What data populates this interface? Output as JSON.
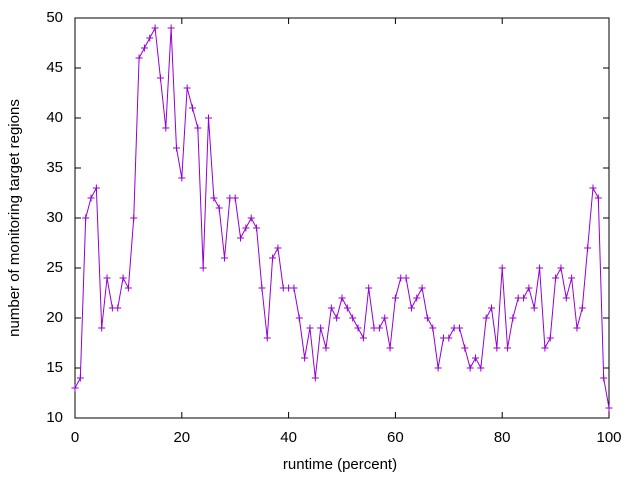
{
  "chart_data": {
    "type": "line",
    "x_label": "runtime (percent)",
    "y_label": "number of monitoring target regions",
    "x": [
      0,
      1,
      2,
      3,
      4,
      5,
      6,
      7,
      8,
      9,
      10,
      11,
      12,
      13,
      14,
      15,
      16,
      17,
      18,
      19,
      20,
      21,
      22,
      23,
      24,
      25,
      26,
      27,
      28,
      29,
      30,
      31,
      32,
      33,
      34,
      35,
      36,
      37,
      38,
      39,
      40,
      41,
      42,
      43,
      44,
      45,
      46,
      47,
      48,
      49,
      50,
      51,
      52,
      53,
      54,
      55,
      56,
      57,
      58,
      59,
      60,
      61,
      62,
      63,
      64,
      65,
      66,
      67,
      68,
      69,
      70,
      71,
      72,
      73,
      74,
      75,
      76,
      77,
      78,
      79,
      80,
      81,
      82,
      83,
      84,
      85,
      86,
      87,
      88,
      89,
      90,
      91,
      92,
      93,
      94,
      95,
      96,
      97,
      98,
      99,
      100
    ],
    "values": [
      13,
      14,
      30,
      32,
      33,
      19,
      24,
      21,
      21,
      24,
      23,
      30,
      46,
      47,
      48,
      49,
      44,
      39,
      49,
      37,
      34,
      43,
      41,
      39,
      25,
      40,
      32,
      31,
      26,
      32,
      32,
      28,
      29,
      30,
      29,
      23,
      18,
      26,
      27,
      23,
      23,
      23,
      20,
      16,
      19,
      14,
      19,
      17,
      21,
      20,
      22,
      21,
      20,
      19,
      18,
      23,
      19,
      19,
      20,
      17,
      22,
      24,
      24,
      21,
      22,
      23,
      20,
      19,
      15,
      18,
      18,
      19,
      19,
      17,
      15,
      16,
      15,
      20,
      21,
      17,
      25,
      17,
      20,
      22,
      22,
      23,
      21,
      25,
      17,
      18,
      24,
      25,
      22,
      24,
      19,
      21,
      27,
      33,
      32,
      14,
      11
    ],
    "color": "#9400d3",
    "marker": "+",
    "xlim": [
      0,
      100
    ],
    "xticks": [
      0,
      20,
      40,
      60,
      80,
      100
    ],
    "ylim": [
      10,
      50
    ],
    "yticks": [
      10,
      15,
      20,
      25,
      30,
      35,
      40,
      45,
      50
    ]
  }
}
